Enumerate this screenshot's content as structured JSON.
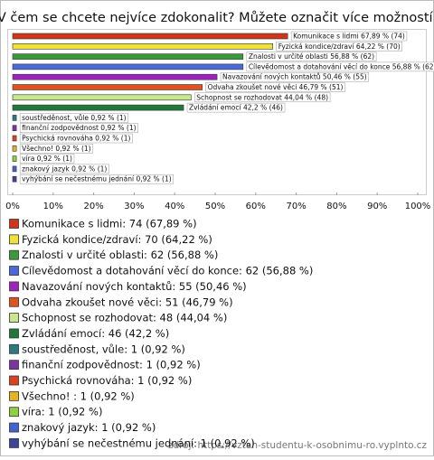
{
  "chart_data": {
    "type": "hbar",
    "title": "V čem se chcete nejvíce zdokonalit? Můžete označit více možností.",
    "source": "zdroj: https://vztah-studentu-k-osobnimu-ro.vyplnto.cz",
    "categories": [
      "Komunikace s lidmi",
      "Fyzická kondice/zdraví",
      "Znalosti v určité oblasti",
      "Cílevědomost a dotahování věcí do konce",
      "Navazování nových kontaktů",
      "Odvaha zkoušet nové věci",
      "Schopnost se rozhodovat",
      "Zvládání emocí",
      "soustředěnost, vůle",
      "finanční zodpovědnost",
      "Psychická rovnováha",
      "Všechno! ",
      "víra",
      "znakový jazyk",
      "vyhýbání se nečestnému jednání"
    ],
    "values": [
      67.89,
      64.22,
      56.88,
      56.88,
      50.46,
      46.79,
      44.04,
      42.2,
      0.92,
      0.92,
      0.92,
      0.92,
      0.92,
      0.92,
      0.92
    ],
    "value_labels": [
      "Komunikace s lidmi 67,89 % (74)",
      "Fyzická kondice/zdraví 64,22 % (70)",
      "Znalosti v určité oblasti 56,88 % (62)",
      "Cílevědomost a dotahování věcí do konce 56,88 % (62)",
      "Navazování nových kontaktů 50,46 % (55)",
      "Odvaha zkoušet nové věci 46,79 % (51)",
      "Schopnost se rozhodovat 44,04 % (48)",
      "Zvládání emocí 42,2 % (46)",
      "soustředěnost, vůle 0,92 % (1)",
      "finanční zodpovědnost 0,92 % (1)",
      "Psychická rovnováha 0,92 % (1)",
      "Všechno!  0,92 % (1)",
      "víra 0,92 % (1)",
      "znakový jazyk 0,92 % (1)",
      "vyhýbání se nečestnému jednání 0,92 % (1)"
    ],
    "legend_labels": [
      "Komunikace s lidmi: 74 (67,89 %)",
      "Fyzická kondice/zdraví: 70 (64,22 %)",
      "Znalosti v určité oblasti: 62 (56,88 %)",
      "Cílevědomost a dotahování věcí do konce: 62 (56,88 %)",
      "Navazování nových kontaktů: 55 (50,46 %)",
      "Odvaha zkoušet nové věci: 51 (46,79 %)",
      "Schopnost se rozhodovat: 48 (44,04 %)",
      "Zvládání emocí: 46 (42,2 %)",
      "soustředěnost, vůle: 1 (0,92 %)",
      "finanční zodpovědnost: 1 (0,92 %)",
      "Psychická rovnováha: 1 (0,92 %)",
      "Všechno! : 1 (0,92 %)",
      "víra: 1 (0,92 %)",
      "znakový jazyk: 1 (0,92 %)",
      "vyhýbání se nečestnému jednání: 1 (0,92 %)"
    ],
    "colors": [
      "#d0351c",
      "#efe23a",
      "#3a9a3a",
      "#4a6ad8",
      "#9c24bc",
      "#e0531f",
      "#c8e68e",
      "#20793a",
      "#2a7a80",
      "#7e34a0",
      "#d8441f",
      "#e8b224",
      "#8ed040",
      "#4262d0",
      "#40449a"
    ],
    "xlim": [
      0,
      100
    ],
    "xticks": [
      {
        "value": 0,
        "label": "0%"
      },
      {
        "value": 10,
        "label": "10%"
      },
      {
        "value": 20,
        "label": "20%"
      },
      {
        "value": 30,
        "label": "30%"
      },
      {
        "value": 40,
        "label": "40%"
      },
      {
        "value": 50,
        "label": "50%"
      },
      {
        "value": 60,
        "label": "60%"
      },
      {
        "value": 70,
        "label": "70%"
      },
      {
        "value": 80,
        "label": "80%"
      },
      {
        "value": 90,
        "label": "90%"
      },
      {
        "value": 100,
        "label": "100%"
      }
    ]
  }
}
